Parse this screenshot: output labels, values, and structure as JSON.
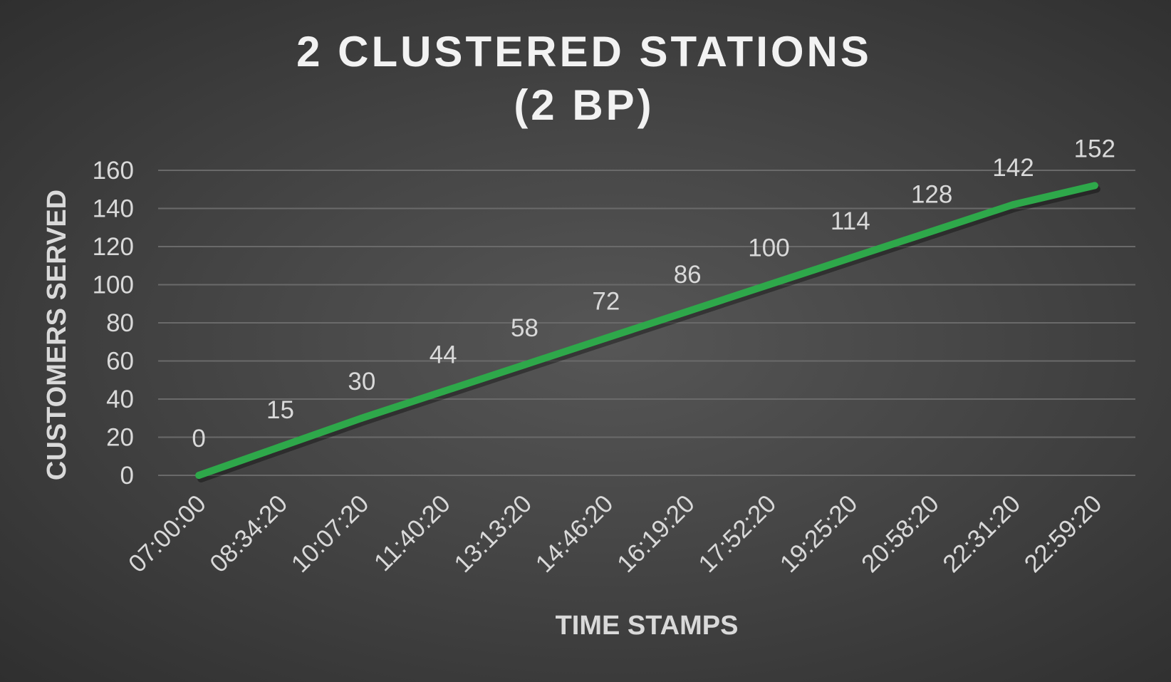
{
  "chart_data": {
    "type": "line",
    "title_lines": [
      "2 CLUSTERED STATIONS",
      "(2 BP)"
    ],
    "xlabel": "TIME STAMPS",
    "ylabel": "CUSTOMERS SERVED",
    "categories": [
      "07:00:00",
      "08:34:20",
      "10:07:20",
      "11:40:20",
      "13:13:20",
      "14:46:20",
      "16:19:20",
      "17:52:20",
      "19:25:20",
      "20:58:20",
      "22:31:20",
      "22:59:20"
    ],
    "series": [
      {
        "values": [
          0,
          15,
          30,
          44,
          58,
          72,
          86,
          100,
          114,
          128,
          142,
          152
        ]
      }
    ],
    "ylim": [
      0,
      160
    ],
    "yticks": [
      0,
      20,
      40,
      60,
      80,
      100,
      120,
      140,
      160
    ],
    "grid": true,
    "data_labels": true,
    "line_color": "#2ea84a"
  }
}
